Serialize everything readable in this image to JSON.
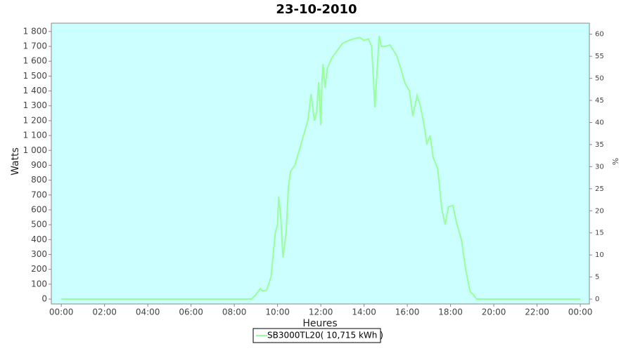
{
  "chart_data": {
    "type": "line",
    "title": "23-10-2010",
    "x_label": "Heures",
    "y_label": "Watts",
    "y2_label": "%",
    "background": "#ccffff",
    "x": [
      0,
      8.8,
      9.0,
      9.2,
      9.3,
      9.5,
      9.7,
      9.9,
      10.0,
      10.05,
      10.15,
      10.25,
      10.4,
      10.5,
      10.6,
      10.8,
      11.0,
      11.2,
      11.4,
      11.55,
      11.7,
      11.8,
      11.9,
      12.0,
      12.05,
      12.1,
      12.2,
      12.3,
      12.5,
      12.8,
      13.0,
      13.3,
      13.5,
      13.8,
      14.0,
      14.2,
      14.35,
      14.5,
      14.7,
      14.8,
      15.0,
      15.2,
      15.5,
      15.7,
      15.9,
      16.1,
      16.25,
      16.45,
      16.6,
      16.8,
      16.9,
      17.05,
      17.2,
      17.4,
      17.6,
      17.75,
      17.9,
      18.1,
      18.3,
      18.5,
      18.7,
      18.9,
      19.05,
      19.2,
      24
    ],
    "series": [
      {
        "name": "SB3000TL20( 10,715 kWh )",
        "color": "#99ff99",
        "values": [
          0,
          0,
          30,
          70,
          55,
          60,
          150,
          450,
          500,
          690,
          550,
          280,
          450,
          750,
          860,
          900,
          1000,
          1100,
          1200,
          1380,
          1200,
          1250,
          1460,
          1170,
          1450,
          1580,
          1420,
          1550,
          1620,
          1680,
          1720,
          1740,
          1750,
          1760,
          1740,
          1750,
          1700,
          1290,
          1770,
          1700,
          1700,
          1710,
          1640,
          1550,
          1450,
          1400,
          1230,
          1370,
          1300,
          1150,
          1040,
          1100,
          950,
          880,
          600,
          500,
          620,
          630,
          500,
          400,
          200,
          50,
          30,
          0,
          0
        ]
      }
    ],
    "xlim": [
      -0.46,
      24.42
    ],
    "xticks": [
      {
        "value": 0,
        "label": "00:00"
      },
      {
        "value": 2,
        "label": "02:00"
      },
      {
        "value": 4,
        "label": "04:00"
      },
      {
        "value": 6,
        "label": "06:00"
      },
      {
        "value": 8,
        "label": "08:00"
      },
      {
        "value": 10,
        "label": "10:00"
      },
      {
        "value": 12,
        "label": "12:00"
      },
      {
        "value": 14,
        "label": "14:00"
      },
      {
        "value": 16,
        "label": "16:00"
      },
      {
        "value": 18,
        "label": "18:00"
      },
      {
        "value": 20,
        "label": "20:00"
      },
      {
        "value": 22,
        "label": "22:00"
      },
      {
        "value": 24,
        "label": "00:00"
      }
    ],
    "ylim": [
      -33,
      1856
    ],
    "yticks": [
      0,
      100,
      200,
      300,
      400,
      500,
      600,
      700,
      800,
      900,
      {
        "value": 1000,
        "label": "1 000"
      },
      {
        "value": 1100,
        "label": "1 100"
      },
      {
        "value": 1200,
        "label": "1 200"
      },
      {
        "value": 1300,
        "label": "1 300"
      },
      {
        "value": 1400,
        "label": "1 400"
      },
      {
        "value": 1500,
        "label": "1 500"
      },
      {
        "value": 1600,
        "label": "1 600"
      },
      {
        "value": 1700,
        "label": "1 700"
      },
      {
        "value": 1800,
        "label": "1 800"
      }
    ],
    "y2lim": [
      -1.1,
      62.5
    ],
    "y2ticks": [
      0,
      5,
      10,
      15,
      20,
      25,
      30,
      35,
      40,
      45,
      50,
      55,
      60
    ]
  }
}
